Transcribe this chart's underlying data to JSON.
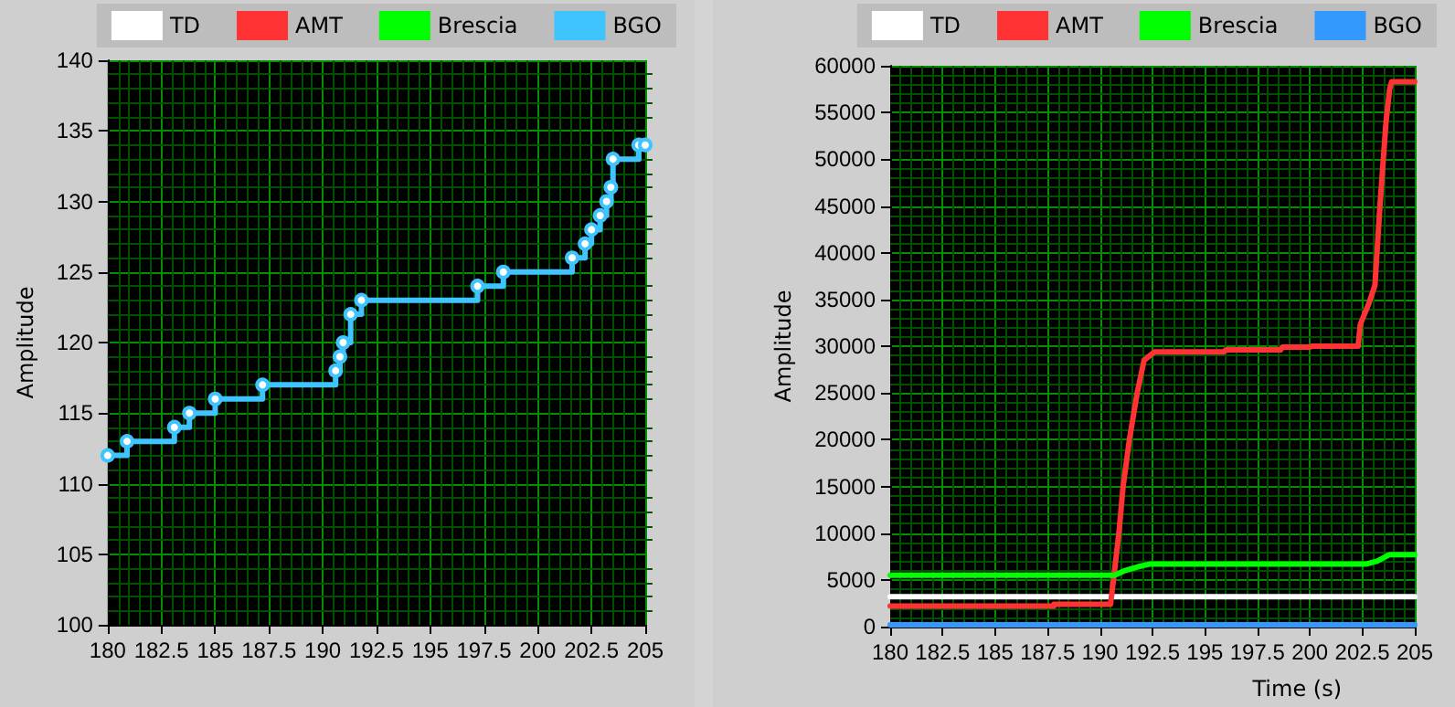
{
  "chart_data": [
    {
      "type": "line",
      "ylabel": "Amplitude",
      "xlim": [
        180,
        205
      ],
      "xticks": [
        180,
        {
          "value": 180.5,
          "label": null
        },
        {
          "value": 181,
          "label": null
        },
        {
          "value": 181.5,
          "label": null
        },
        {
          "value": 182,
          "label": null
        },
        182.5,
        {
          "value": 183,
          "label": null
        },
        {
          "value": 183.5,
          "label": null
        },
        {
          "value": 184,
          "label": null
        },
        {
          "value": 184.5,
          "label": null
        },
        185,
        {
          "value": 185.5,
          "label": null
        },
        {
          "value": 186,
          "label": null
        },
        {
          "value": 186.5,
          "label": null
        },
        {
          "value": 187,
          "label": null
        },
        187.5,
        {
          "value": 188,
          "label": null
        },
        {
          "value": 188.5,
          "label": null
        },
        {
          "value": 189,
          "label": null
        },
        {
          "value": 189.5,
          "label": null
        },
        190,
        {
          "value": 190.5,
          "label": null
        },
        {
          "value": 191,
          "label": null
        },
        {
          "value": 191.5,
          "label": null
        },
        {
          "value": 192,
          "label": null
        },
        192.5,
        {
          "value": 193,
          "label": null
        },
        {
          "value": 193.5,
          "label": null
        },
        {
          "value": 194,
          "label": null
        },
        {
          "value": 194.5,
          "label": null
        },
        195,
        {
          "value": 195.5,
          "label": null
        },
        {
          "value": 196,
          "label": null
        },
        {
          "value": 196.5,
          "label": null
        },
        {
          "value": 197,
          "label": null
        },
        197.5,
        {
          "value": 198,
          "label": null
        },
        {
          "value": 198.5,
          "label": null
        },
        {
          "value": 199,
          "label": null
        },
        {
          "value": 199.5,
          "label": null
        },
        200,
        {
          "value": 200.5,
          "label": null
        },
        {
          "value": 201,
          "label": null
        },
        {
          "value": 201.5,
          "label": null
        },
        {
          "value": 202,
          "label": null
        },
        202.5,
        {
          "value": 203,
          "label": null
        },
        {
          "value": 203.5,
          "label": null
        },
        {
          "value": 204,
          "label": null
        },
        {
          "value": 204.5,
          "label": null
        },
        205
      ],
      "ylim": [
        100,
        140
      ],
      "yticks": [
        100,
        {
          "value": 101,
          "label": null
        },
        {
          "value": 102,
          "label": null
        },
        {
          "value": 103,
          "label": null
        },
        {
          "value": 104,
          "label": null
        },
        105,
        {
          "value": 106,
          "label": null
        },
        {
          "value": 107,
          "label": null
        },
        {
          "value": 108,
          "label": null
        },
        {
          "value": 109,
          "label": null
        },
        110,
        {
          "value": 111,
          "label": null
        },
        {
          "value": 112,
          "label": null
        },
        {
          "value": 113,
          "label": null
        },
        {
          "value": 114,
          "label": null
        },
        115,
        {
          "value": 116,
          "label": null
        },
        {
          "value": 117,
          "label": null
        },
        {
          "value": 118,
          "label": null
        },
        {
          "value": 119,
          "label": null
        },
        120,
        {
          "value": 121,
          "label": null
        },
        {
          "value": 122,
          "label": null
        },
        {
          "value": 123,
          "label": null
        },
        {
          "value": 124,
          "label": null
        },
        125,
        {
          "value": 126,
          "label": null
        },
        {
          "value": 127,
          "label": null
        },
        {
          "value": 128,
          "label": null
        },
        {
          "value": 129,
          "label": null
        },
        130,
        {
          "value": 131,
          "label": null
        },
        {
          "value": 132,
          "label": null
        },
        {
          "value": 133,
          "label": null
        },
        {
          "value": 134,
          "label": null
        },
        135,
        {
          "value": 136,
          "label": null
        },
        {
          "value": 137,
          "label": null
        },
        {
          "value": 138,
          "label": null
        },
        {
          "value": 139,
          "label": null
        },
        140
      ],
      "grid": true,
      "legend": "top right",
      "marker": "circle",
      "series": [
        {
          "name": "TD",
          "color": "#ffffff"
        },
        {
          "name": "AMT",
          "color": "#ff3333"
        },
        {
          "name": "Brescia",
          "color": "#00ff00"
        },
        {
          "name": "BGO",
          "type": "step",
          "color": "#40c4ff",
          "x": [
            180,
            180.9,
            183.1,
            183.8,
            185,
            187.2,
            190.6,
            190.8,
            190.95,
            191.3,
            191.8,
            197.2,
            198.4,
            201.6,
            202.2,
            202.5,
            202.9,
            203.2,
            203.4,
            203.5,
            204.7,
            205
          ],
          "values": [
            112,
            113,
            114,
            115,
            116,
            117,
            118,
            119,
            120,
            122,
            123,
            124,
            125,
            126,
            127,
            128,
            129,
            130,
            131,
            133,
            134,
            134
          ]
        }
      ]
    },
    {
      "type": "line",
      "ylabel": "Amplitude",
      "xlabel": "Time (s)",
      "xlim": [
        180,
        205
      ],
      "xticks": [
        180,
        {
          "value": 180.5,
          "label": null
        },
        {
          "value": 181,
          "label": null
        },
        {
          "value": 181.5,
          "label": null
        },
        {
          "value": 182,
          "label": null
        },
        182.5,
        {
          "value": 183,
          "label": null
        },
        {
          "value": 183.5,
          "label": null
        },
        {
          "value": 184,
          "label": null
        },
        {
          "value": 184.5,
          "label": null
        },
        185,
        {
          "value": 185.5,
          "label": null
        },
        {
          "value": 186,
          "label": null
        },
        {
          "value": 186.5,
          "label": null
        },
        {
          "value": 187,
          "label": null
        },
        187.5,
        {
          "value": 188,
          "label": null
        },
        {
          "value": 188.5,
          "label": null
        },
        {
          "value": 189,
          "label": null
        },
        {
          "value": 189.5,
          "label": null
        },
        190,
        {
          "value": 190.5,
          "label": null
        },
        {
          "value": 191,
          "label": null
        },
        {
          "value": 191.5,
          "label": null
        },
        {
          "value": 192,
          "label": null
        },
        192.5,
        {
          "value": 193,
          "label": null
        },
        {
          "value": 193.5,
          "label": null
        },
        {
          "value": 194,
          "label": null
        },
        {
          "value": 194.5,
          "label": null
        },
        195,
        {
          "value": 195.5,
          "label": null
        },
        {
          "value": 196,
          "label": null
        },
        {
          "value": 196.5,
          "label": null
        },
        {
          "value": 197,
          "label": null
        },
        197.5,
        {
          "value": 198,
          "label": null
        },
        {
          "value": 198.5,
          "label": null
        },
        {
          "value": 199,
          "label": null
        },
        {
          "value": 199.5,
          "label": null
        },
        200,
        {
          "value": 200.5,
          "label": null
        },
        {
          "value": 201,
          "label": null
        },
        {
          "value": 201.5,
          "label": null
        },
        {
          "value": 202,
          "label": null
        },
        202.5,
        {
          "value": 203,
          "label": null
        },
        {
          "value": 203.5,
          "label": null
        },
        {
          "value": 204,
          "label": null
        },
        {
          "value": 204.5,
          "label": null
        },
        205
      ],
      "ylim": [
        0,
        60000
      ],
      "yticks": [
        0,
        {
          "value": 1000,
          "label": null
        },
        {
          "value": 2000,
          "label": null
        },
        {
          "value": 3000,
          "label": null
        },
        {
          "value": 4000,
          "label": null
        },
        5000,
        {
          "value": 6000,
          "label": null
        },
        {
          "value": 7000,
          "label": null
        },
        {
          "value": 8000,
          "label": null
        },
        {
          "value": 9000,
          "label": null
        },
        10000,
        {
          "value": 11000,
          "label": null
        },
        {
          "value": 12000,
          "label": null
        },
        {
          "value": 13000,
          "label": null
        },
        {
          "value": 14000,
          "label": null
        },
        15000,
        {
          "value": 16000,
          "label": null
        },
        {
          "value": 17000,
          "label": null
        },
        {
          "value": 18000,
          "label": null
        },
        {
          "value": 19000,
          "label": null
        },
        20000,
        {
          "value": 21000,
          "label": null
        },
        {
          "value": 22000,
          "label": null
        },
        {
          "value": 23000,
          "label": null
        },
        {
          "value": 24000,
          "label": null
        },
        25000,
        {
          "value": 26000,
          "label": null
        },
        {
          "value": 27000,
          "label": null
        },
        {
          "value": 28000,
          "label": null
        },
        {
          "value": 29000,
          "label": null
        },
        30000,
        {
          "value": 31000,
          "label": null
        },
        {
          "value": 32000,
          "label": null
        },
        {
          "value": 33000,
          "label": null
        },
        {
          "value": 34000,
          "label": null
        },
        35000,
        {
          "value": 36000,
          "label": null
        },
        {
          "value": 37000,
          "label": null
        },
        {
          "value": 38000,
          "label": null
        },
        {
          "value": 39000,
          "label": null
        },
        40000,
        {
          "value": 41000,
          "label": null
        },
        {
          "value": 42000,
          "label": null
        },
        {
          "value": 43000,
          "label": null
        },
        {
          "value": 44000,
          "label": null
        },
        45000,
        {
          "value": 46000,
          "label": null
        },
        {
          "value": 47000,
          "label": null
        },
        {
          "value": 48000,
          "label": null
        },
        {
          "value": 49000,
          "label": null
        },
        50000,
        {
          "value": 51000,
          "label": null
        },
        {
          "value": 52000,
          "label": null
        },
        {
          "value": 53000,
          "label": null
        },
        {
          "value": 54000,
          "label": null
        },
        55000,
        {
          "value": 56000,
          "label": null
        },
        {
          "value": 57000,
          "label": null
        },
        {
          "value": 58000,
          "label": null
        },
        {
          "value": 59000,
          "label": null
        },
        60000
      ],
      "grid": true,
      "legend": "top right",
      "marker": "none",
      "series": [
        {
          "name": "TD",
          "color": "#ffffff",
          "x": [
            180,
            205
          ],
          "values": [
            3200,
            3200
          ]
        },
        {
          "name": "AMT",
          "color": "#ff3333",
          "x": [
            180,
            187.8,
            187.8,
            190.5,
            190.64,
            190.9,
            191.1,
            191.4,
            191.77,
            192.1,
            192.6,
            195.9,
            196,
            198.6,
            198.7,
            200,
            200.1,
            202.3,
            202.4,
            202.8,
            203.1,
            203.34,
            203.5,
            203.63,
            203.8,
            203.9,
            205
          ],
          "values": [
            2200,
            2200,
            2400,
            2400,
            5000,
            10000,
            15000,
            20000,
            25000,
            28500,
            29400,
            29400,
            29600,
            29600,
            29900,
            29900,
            30000,
            30000,
            32300,
            34500,
            36500,
            45000,
            50000,
            54000,
            57500,
            58300,
            58300
          ]
        },
        {
          "name": "Brescia",
          "color": "#00ff00",
          "x": [
            180,
            190.7,
            191.2,
            191.8,
            192.4,
            202.7,
            203.2,
            203.8,
            205
          ],
          "values": [
            5500,
            5500,
            6000,
            6400,
            6700,
            6700,
            7000,
            7700,
            7700
          ]
        },
        {
          "name": "BGO",
          "color": "#3399ff",
          "x": [
            180,
            205
          ],
          "values": [
            200,
            200
          ]
        }
      ]
    }
  ]
}
